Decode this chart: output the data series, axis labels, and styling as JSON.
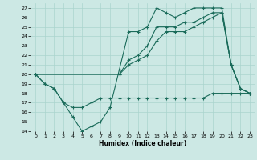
{
  "xlabel": "Humidex (Indice chaleur)",
  "bg_color": "#cce8e4",
  "line_color": "#1a6b5a",
  "grid_color": "#aad4ce",
  "xlim": [
    -0.5,
    23.5
  ],
  "ylim": [
    14,
    27.5
  ],
  "yticks": [
    14,
    15,
    16,
    17,
    18,
    19,
    20,
    21,
    22,
    23,
    24,
    25,
    26,
    27
  ],
  "xticks": [
    0,
    1,
    2,
    3,
    4,
    5,
    6,
    7,
    8,
    9,
    10,
    11,
    12,
    13,
    14,
    15,
    16,
    17,
    18,
    19,
    20,
    21,
    22,
    23
  ],
  "line_dip_x": [
    0,
    1,
    2,
    3,
    4,
    5,
    6,
    7,
    8,
    9
  ],
  "line_dip_y": [
    20,
    19,
    18.5,
    17,
    15.5,
    14,
    14.5,
    15,
    16.5,
    20.5
  ],
  "line_top_x": [
    9,
    10,
    11,
    12,
    13,
    14,
    15,
    16,
    17,
    18,
    19,
    20,
    21,
    22,
    23
  ],
  "line_top_y": [
    20.5,
    24.5,
    24.5,
    25,
    27,
    26.5,
    26,
    26.5,
    27,
    27,
    27,
    27,
    21,
    18.5,
    18
  ],
  "line_flat_x": [
    0,
    1,
    2,
    3,
    4,
    5,
    6,
    7,
    8,
    9,
    10,
    11,
    12,
    13,
    14,
    15,
    16,
    17,
    18,
    19,
    20,
    21,
    22,
    23
  ],
  "line_flat_y": [
    20,
    19,
    18.5,
    17,
    16.5,
    16.5,
    17,
    17.5,
    17.5,
    17.5,
    17.5,
    17.5,
    17.5,
    17.5,
    17.5,
    17.5,
    17.5,
    17.5,
    17.5,
    18,
    18,
    18,
    18,
    18
  ],
  "line_rise1_x": [
    0,
    9,
    10,
    11,
    12,
    13,
    14,
    15,
    16,
    17,
    18,
    19,
    20,
    21,
    22,
    23
  ],
  "line_rise1_y": [
    20,
    20,
    21,
    21.5,
    22,
    23.5,
    24.5,
    24.5,
    24.5,
    25,
    25.5,
    26,
    26.5,
    21,
    18.5,
    18
  ],
  "line_rise2_x": [
    0,
    9,
    10,
    11,
    12,
    13,
    14,
    15,
    16,
    17,
    18,
    19,
    20,
    21,
    22,
    23
  ],
  "line_rise2_y": [
    20,
    20,
    21.5,
    22,
    23,
    25,
    25,
    25,
    25.5,
    25.5,
    26,
    26.5,
    26.5,
    21,
    18.5,
    18
  ]
}
